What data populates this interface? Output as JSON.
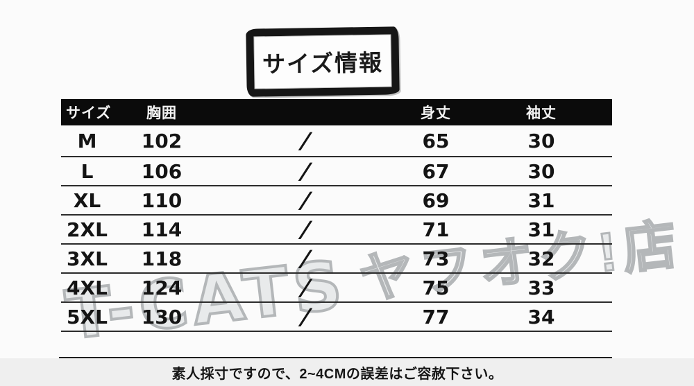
{
  "title": "サイズ情報",
  "table": {
    "headers": [
      "サイズ",
      "胸囲",
      "",
      "身丈",
      "袖丈"
    ],
    "rows": [
      {
        "size": "M",
        "chest": "102",
        "sep": "/",
        "length": "65",
        "sleeve": "30"
      },
      {
        "size": "L",
        "chest": "106",
        "sep": "/",
        "length": "67",
        "sleeve": "30"
      },
      {
        "size": "XL",
        "chest": "110",
        "sep": "/",
        "length": "69",
        "sleeve": "31"
      },
      {
        "size": "2XL",
        "chest": "114",
        "sep": "/",
        "length": "71",
        "sleeve": "31"
      },
      {
        "size": "3XL",
        "chest": "118",
        "sep": "/",
        "length": "73",
        "sleeve": "32"
      },
      {
        "size": "4XL",
        "chest": "124",
        "sep": "/",
        "length": "75",
        "sleeve": "33"
      },
      {
        "size": "5XL",
        "chest": "130",
        "sep": "/",
        "length": "77",
        "sleeve": "34"
      }
    ]
  },
  "watermark": {
    "latin": "T-CATS",
    "japanese": "ヤフオク!店"
  },
  "note": "素人採寸ですので、2~4CMの誤差はご容赦下さい。",
  "colors": {
    "header_bg": "#0b0b0b",
    "row_line": "#2b2b2b",
    "note_strip_bg": "#efefef",
    "watermark_outline": "#b4b7b9",
    "ink": "#141414"
  }
}
